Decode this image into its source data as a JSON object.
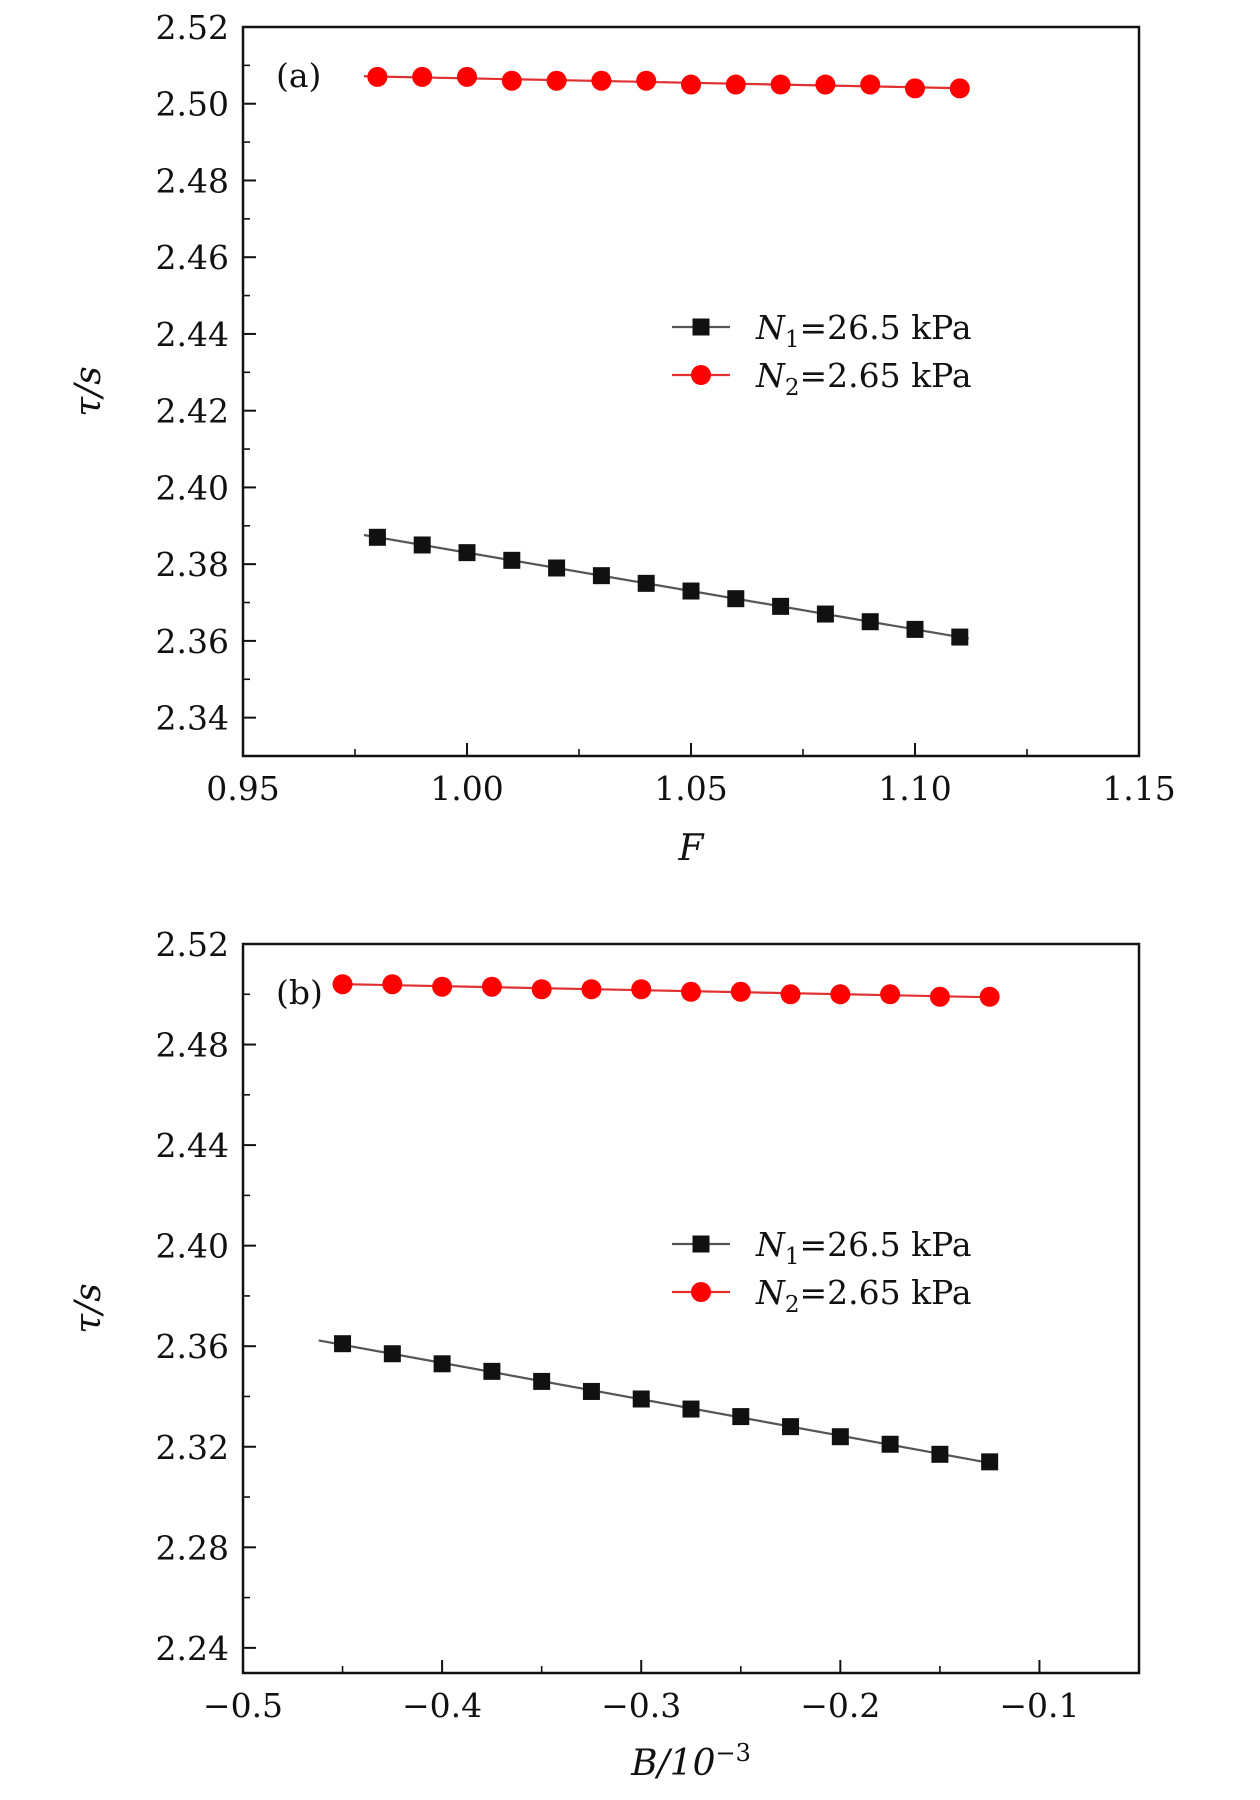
{
  "chart_data": [
    {
      "type": "line",
      "panel_label": "(a)",
      "xlabel": "F",
      "ylabel": "τ/s",
      "xlim": [
        0.95,
        1.15
      ],
      "ylim": [
        2.33,
        2.52
      ],
      "xticks": [
        0.95,
        1.0,
        1.05,
        1.1,
        1.15
      ],
      "xtick_labels": [
        "0.95",
        "1.00",
        "1.05",
        "1.10",
        "1.15"
      ],
      "yticks": [
        2.34,
        2.36,
        2.38,
        2.4,
        2.42,
        2.44,
        2.46,
        2.48,
        2.5,
        2.52
      ],
      "ytick_labels": [
        "2.34",
        "2.36",
        "2.38",
        "2.40",
        "2.42",
        "2.44",
        "2.46",
        "2.48",
        "2.50",
        "2.52"
      ],
      "legend_position": "center-right",
      "series": [
        {
          "name": "N1=26.5 kPa",
          "legend_main": "N",
          "legend_sub": "1",
          "legend_rest": "=26.5 kPa",
          "marker": "square",
          "color": "#111111",
          "line_color": "#555555",
          "x": [
            0.98,
            0.99,
            1.0,
            1.01,
            1.02,
            1.03,
            1.04,
            1.05,
            1.06,
            1.07,
            1.08,
            1.09,
            1.1,
            1.11
          ],
          "values": [
            2.387,
            2.385,
            2.383,
            2.381,
            2.379,
            2.377,
            2.375,
            2.373,
            2.371,
            2.369,
            2.367,
            2.365,
            2.363,
            2.361
          ]
        },
        {
          "name": "N2=2.65 kPa",
          "legend_main": "N",
          "legend_sub": "2",
          "legend_rest": "=2.65 kPa",
          "marker": "circle",
          "color": "#ff0000",
          "line_color": "#e03030",
          "x": [
            0.98,
            0.99,
            1.0,
            1.01,
            1.02,
            1.03,
            1.04,
            1.05,
            1.06,
            1.07,
            1.08,
            1.09,
            1.1,
            1.11
          ],
          "values": [
            2.507,
            2.507,
            2.507,
            2.506,
            2.506,
            2.506,
            2.506,
            2.505,
            2.505,
            2.505,
            2.505,
            2.505,
            2.504,
            2.504
          ]
        }
      ]
    },
    {
      "type": "line",
      "panel_label": "(b)",
      "xlabel": "B/10",
      "xlabel_sup": "−3",
      "ylabel": "τ/s",
      "xlim": [
        -0.5,
        -0.05
      ],
      "ylim": [
        2.23,
        2.52
      ],
      "xticks": [
        -0.5,
        -0.4,
        -0.3,
        -0.2,
        -0.1
      ],
      "xtick_labels": [
        "−0.5",
        "−0.4",
        "−0.3",
        "−0.2",
        "−0.1"
      ],
      "yticks": [
        2.24,
        2.28,
        2.32,
        2.36,
        2.4,
        2.44,
        2.48,
        2.52
      ],
      "ytick_labels": [
        "2.24",
        "2.28",
        "2.32",
        "2.36",
        "2.40",
        "2.44",
        "2.48",
        "2.52"
      ],
      "legend_position": "center-right",
      "series": [
        {
          "name": "N1=26.5 kPa",
          "legend_main": "N",
          "legend_sub": "1",
          "legend_rest": "=26.5 kPa",
          "marker": "square",
          "color": "#111111",
          "line_color": "#555555",
          "x": [
            -0.45,
            -0.425,
            -0.4,
            -0.375,
            -0.35,
            -0.325,
            -0.3,
            -0.275,
            -0.25,
            -0.225,
            -0.2,
            -0.175,
            -0.15,
            -0.125
          ],
          "values": [
            2.361,
            2.357,
            2.353,
            2.35,
            2.346,
            2.342,
            2.339,
            2.335,
            2.332,
            2.328,
            2.324,
            2.321,
            2.317,
            2.314
          ]
        },
        {
          "name": "N2=2.65 kPa",
          "legend_main": "N",
          "legend_sub": "2",
          "legend_rest": "=2.65 kPa",
          "marker": "circle",
          "color": "#ff0000",
          "line_color": "#e03030",
          "x": [
            -0.45,
            -0.425,
            -0.4,
            -0.375,
            -0.35,
            -0.325,
            -0.3,
            -0.275,
            -0.25,
            -0.225,
            -0.2,
            -0.175,
            -0.15,
            -0.125
          ],
          "values": [
            2.504,
            2.504,
            2.503,
            2.503,
            2.502,
            2.502,
            2.502,
            2.501,
            2.501,
            2.5,
            2.5,
            2.5,
            2.499,
            2.499
          ]
        }
      ]
    }
  ]
}
